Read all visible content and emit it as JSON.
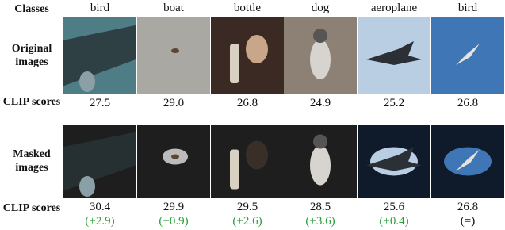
{
  "header": {
    "label": "Classes",
    "classes": [
      "bird",
      "boat",
      "bottle",
      "dog",
      "aeroplane",
      "bird"
    ]
  },
  "rows": {
    "original": {
      "label": "Original images"
    },
    "original_scores": {
      "label": "CLIP scores",
      "scores": [
        "27.5",
        "29.0",
        "26.8",
        "24.9",
        "25.2",
        "26.8"
      ]
    },
    "masked": {
      "label": "Masked images"
    },
    "masked_scores": {
      "label": "CLIP scores",
      "scores": [
        "30.4",
        "29.9",
        "29.5",
        "28.5",
        "25.6",
        "26.8"
      ],
      "deltas": [
        "(+2.9)",
        "(+0.9)",
        "(+2.6)",
        "(+3.6)",
        "(+0.4)",
        "(=)"
      ],
      "delta_colors": [
        "#2e9e3a",
        "#2e9e3a",
        "#2e9e3a",
        "#2e9e3a",
        "#2e9e3a",
        "#111111"
      ]
    }
  }
}
